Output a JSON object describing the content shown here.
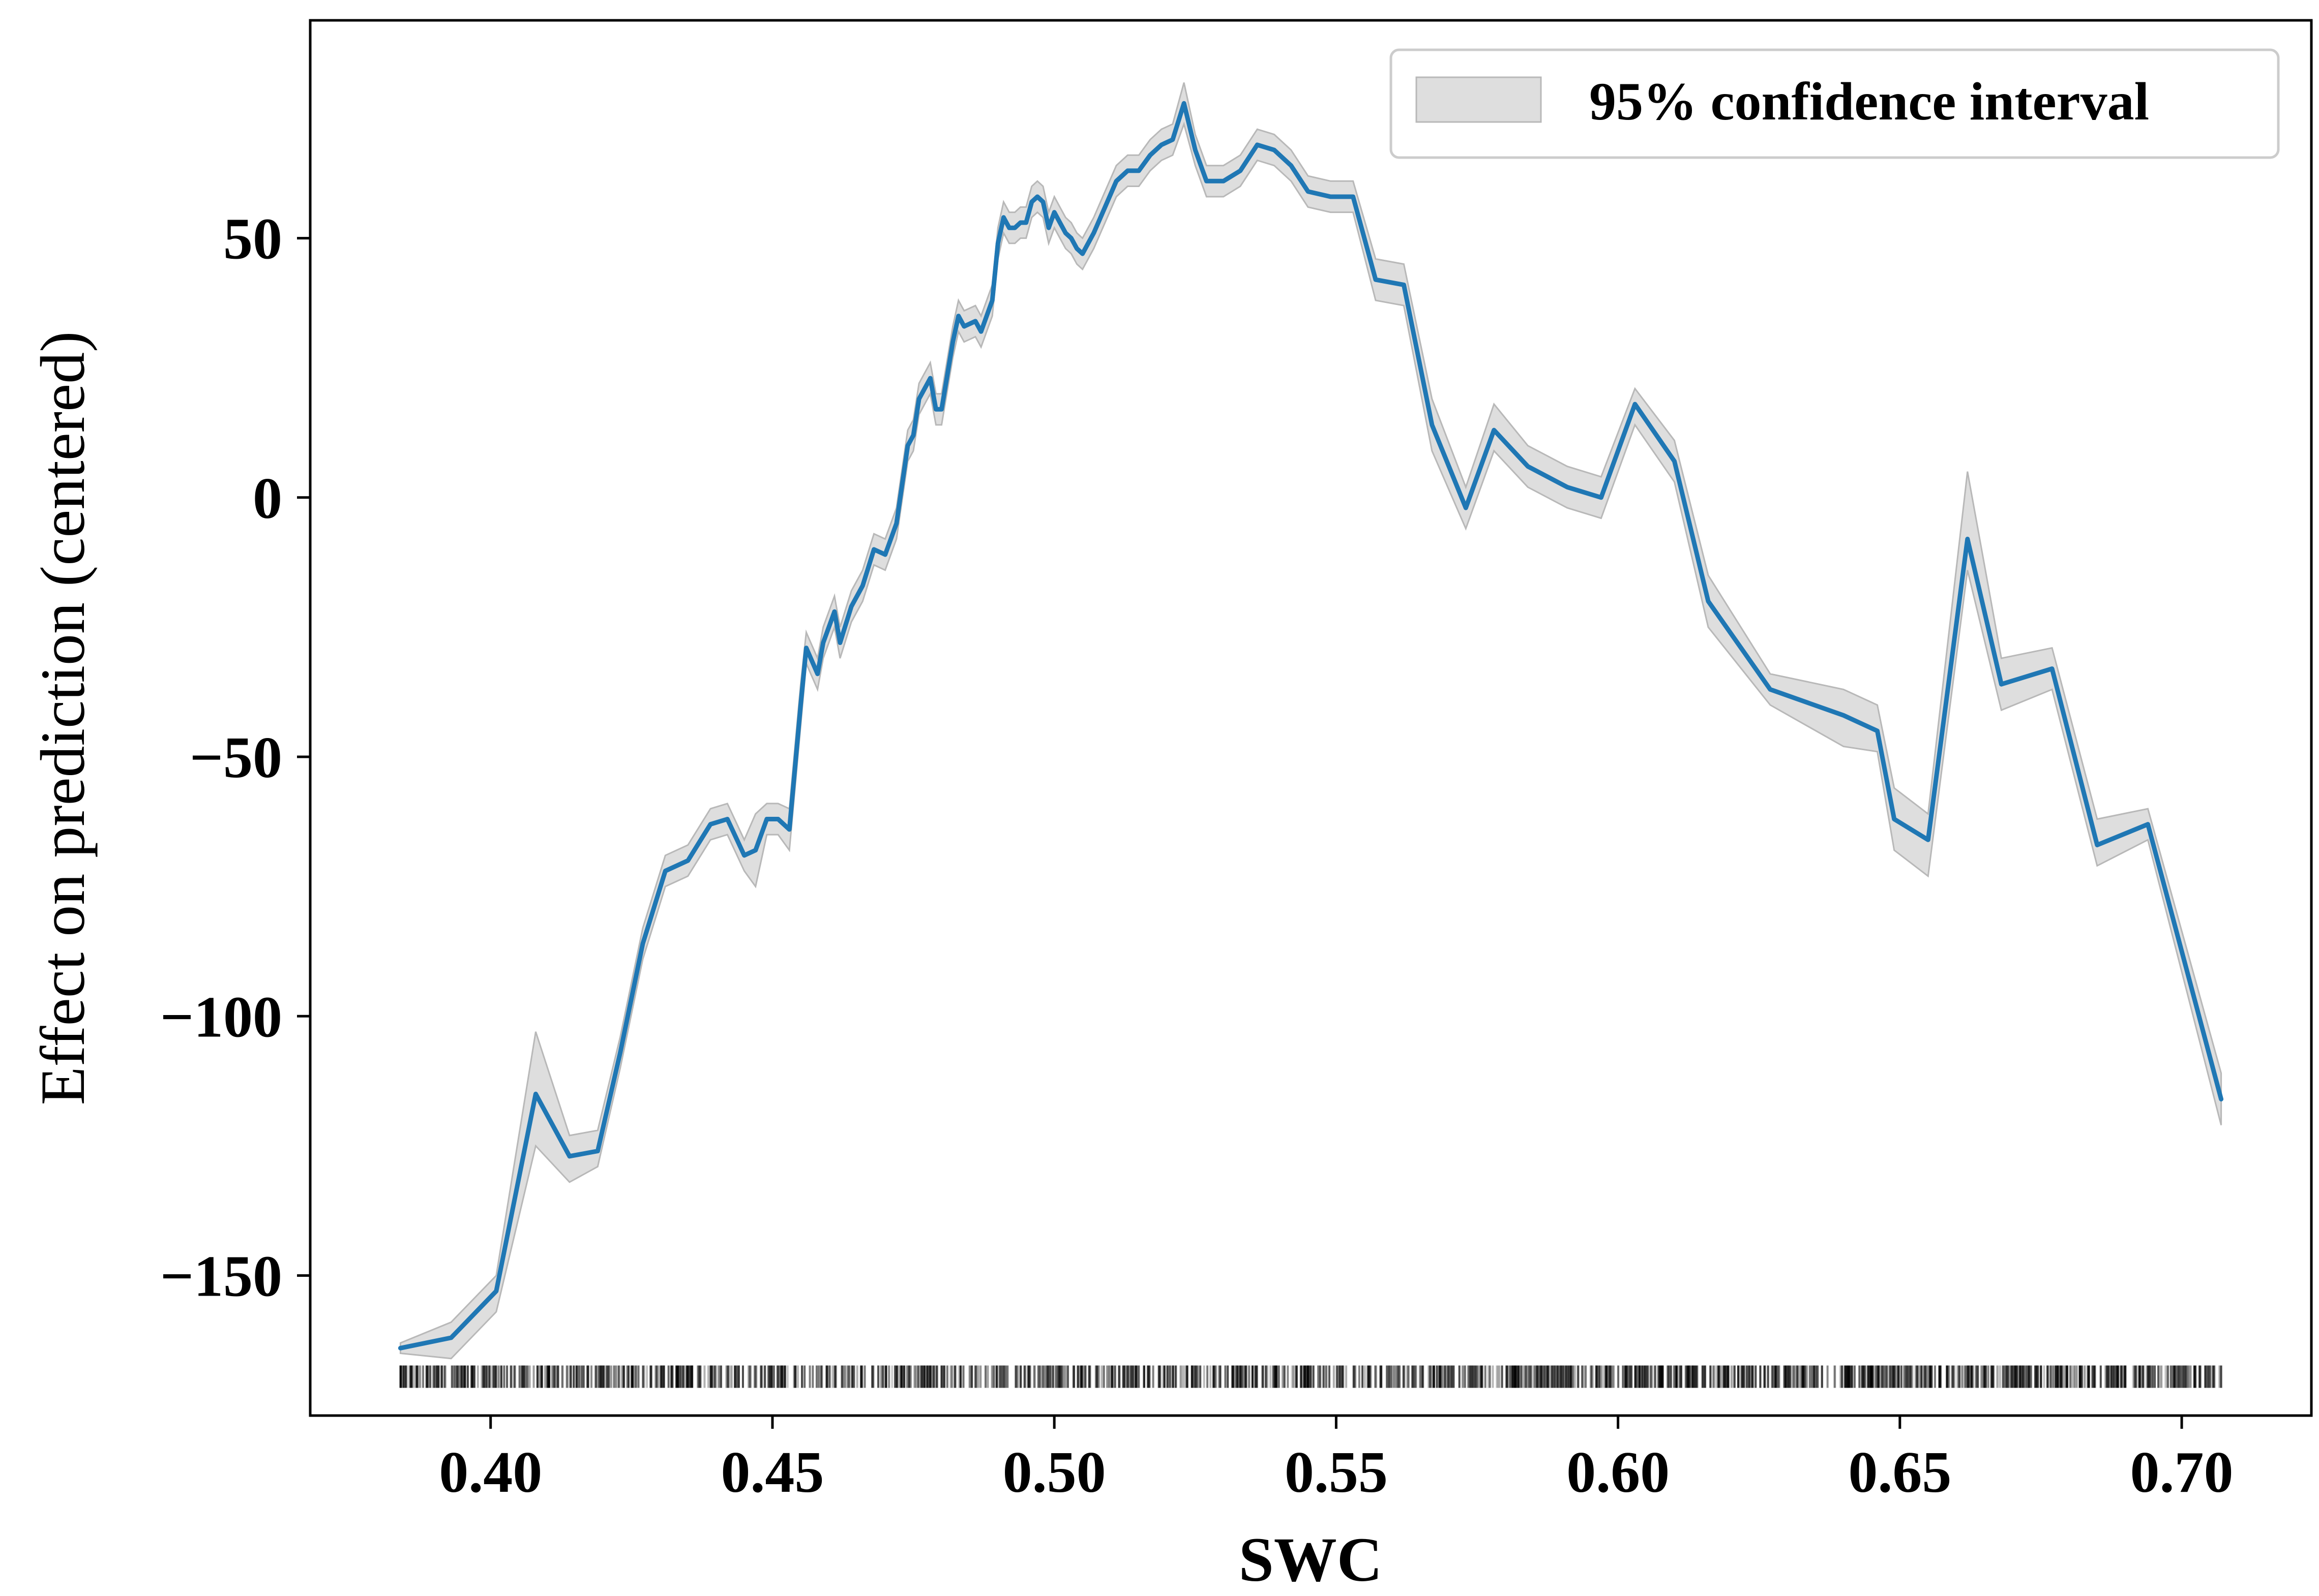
{
  "chart_data": {
    "type": "line",
    "title": "",
    "xlabel": "SWC",
    "ylabel": "Effect on prediction (centered)",
    "xlim": [
      0.368,
      0.723
    ],
    "ylim": [
      -177,
      92
    ],
    "xticks": [
      0.4,
      0.45,
      0.5,
      0.55,
      0.6,
      0.65,
      0.7
    ],
    "xtick_labels": [
      "0.40",
      "0.45",
      "0.50",
      "0.55",
      "0.60",
      "0.65",
      "0.70"
    ],
    "yticks": [
      50,
      0,
      -50,
      -100,
      -150
    ],
    "ytick_labels": [
      "50",
      "0",
      "−50",
      "−100",
      "−150"
    ],
    "grid": false,
    "legend_position": "top-right",
    "colors": {
      "line": "#1f77b4",
      "band": "#d3d3d3",
      "band_edge": "#b8b8b8",
      "rug": "#000000"
    },
    "series": [
      {
        "type": "line",
        "name": "",
        "x": [
          0.384,
          0.393,
          0.401,
          0.408,
          0.414,
          0.419,
          0.423,
          0.427,
          0.431,
          0.435,
          0.439,
          0.442,
          0.445,
          0.447,
          0.449,
          0.451,
          0.453,
          0.455,
          0.456,
          0.458,
          0.459,
          0.461,
          0.462,
          0.464,
          0.466,
          0.468,
          0.47,
          0.472,
          0.474,
          0.475,
          0.476,
          0.478,
          0.479,
          0.48,
          0.482,
          0.483,
          0.484,
          0.486,
          0.487,
          0.489,
          0.49,
          0.491,
          0.492,
          0.493,
          0.494,
          0.495,
          0.496,
          0.497,
          0.498,
          0.499,
          0.5,
          0.501,
          0.502,
          0.503,
          0.504,
          0.505,
          0.507,
          0.509,
          0.511,
          0.513,
          0.515,
          0.517,
          0.519,
          0.521,
          0.523,
          0.525,
          0.527,
          0.53,
          0.533,
          0.536,
          0.539,
          0.542,
          0.545,
          0.549,
          0.553,
          0.557,
          0.562,
          0.567,
          0.573,
          0.578,
          0.584,
          0.591,
          0.597,
          0.603,
          0.61,
          0.616,
          0.627,
          0.64,
          0.646,
          0.649,
          0.655,
          0.662,
          0.668,
          0.677,
          0.685,
          0.694,
          0.707
        ],
        "y": [
          -164,
          -162,
          -153,
          -115,
          -127,
          -126,
          -107,
          -86,
          -72,
          -70,
          -63,
          -62,
          -69,
          -68,
          -62,
          -62,
          -64,
          -40,
          -29,
          -34,
          -28,
          -22,
          -28,
          -21,
          -17,
          -10,
          -11,
          -5,
          10,
          12,
          19,
          23,
          17,
          17,
          30,
          35,
          33,
          34,
          32,
          38,
          49,
          54,
          52,
          52,
          53,
          53,
          57,
          58,
          57,
          52,
          55,
          53,
          51,
          50,
          48,
          47,
          51,
          56,
          61,
          63,
          63,
          66,
          68,
          69,
          76,
          67,
          61,
          61,
          63,
          68,
          67,
          64,
          59,
          58,
          58,
          42,
          41,
          14,
          -2,
          13,
          6,
          2,
          0,
          18,
          7,
          -20,
          -37,
          -42,
          -45,
          -62,
          -66,
          -8,
          -36,
          -33,
          -67,
          -63,
          -116
        ],
        "ci_lower": [
          -165,
          -166,
          -157,
          -125,
          -132,
          -129,
          -110,
          -89,
          -75,
          -73,
          -66,
          -65,
          -72,
          -75,
          -65,
          -65,
          -68,
          -44,
          -32,
          -37,
          -31,
          -25,
          -31,
          -24,
          -20,
          -13,
          -14,
          -8,
          7,
          9,
          16,
          20,
          14,
          14,
          27,
          32,
          30,
          31,
          29,
          35,
          46,
          51,
          49,
          49,
          50,
          50,
          54,
          55,
          54,
          49,
          52,
          50,
          48,
          47,
          45,
          44,
          48,
          53,
          58,
          60,
          60,
          63,
          65,
          66,
          72,
          64,
          58,
          58,
          60,
          65,
          64,
          61,
          56,
          55,
          55,
          38,
          37,
          9,
          -6,
          9,
          2,
          -2,
          -4,
          14,
          3,
          -25,
          -40,
          -48,
          -49,
          -68,
          -73,
          -14,
          -41,
          -37,
          -71,
          -66,
          -121
        ],
        "ci_upper": [
          -163,
          -159,
          -150,
          -103,
          -123,
          -122,
          -104,
          -83,
          -69,
          -67,
          -60,
          -59,
          -66,
          -61,
          -59,
          -59,
          -60,
          -36,
          -26,
          -31,
          -25,
          -19,
          -25,
          -18,
          -14,
          -7,
          -8,
          -2,
          13,
          15,
          22,
          26,
          20,
          20,
          33,
          38,
          36,
          37,
          35,
          41,
          52,
          57,
          55,
          55,
          56,
          56,
          60,
          61,
          60,
          55,
          58,
          56,
          54,
          53,
          51,
          50,
          54,
          59,
          64,
          66,
          66,
          69,
          71,
          72,
          80,
          70,
          64,
          64,
          66,
          71,
          70,
          67,
          62,
          61,
          61,
          46,
          45,
          19,
          2,
          18,
          10,
          6,
          4,
          21,
          11,
          -15,
          -34,
          -37,
          -40,
          -56,
          -61,
          5,
          -31,
          -29,
          -62,
          -60,
          -111
        ]
      },
      {
        "type": "band",
        "name": "95% confidence interval"
      },
      {
        "type": "rug",
        "name": "",
        "y_level": -169.5,
        "x_range": [
          0.384,
          0.707
        ]
      }
    ]
  }
}
